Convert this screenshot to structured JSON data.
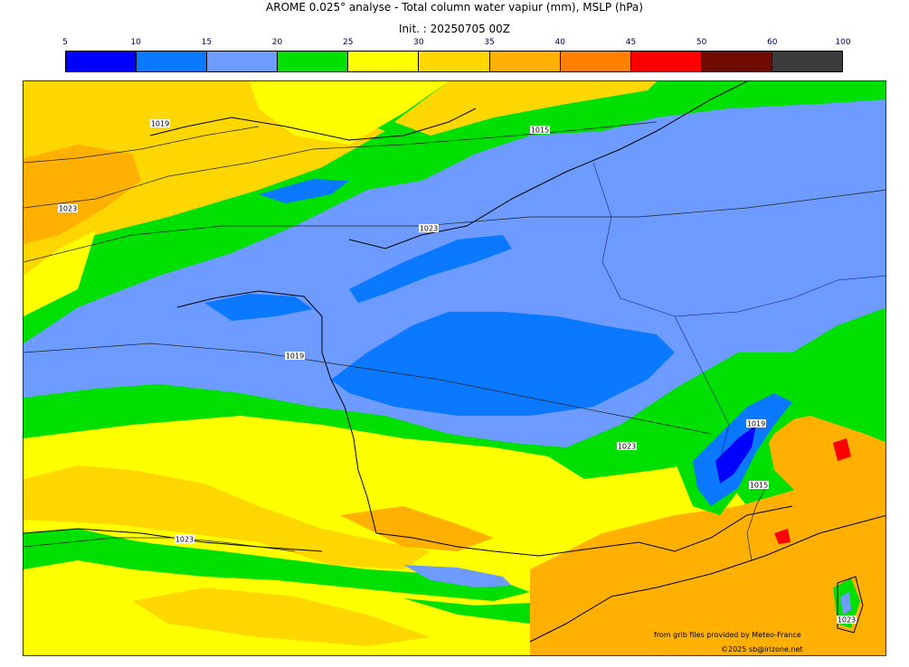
{
  "title": "AROME 0.025° analyse - Total column water vapiur (mm), MSLP (hPa)",
  "init": "Init. : 20250705 00Z",
  "scale": {
    "labels": [
      "5",
      "10",
      "15",
      "20",
      "25",
      "30",
      "35",
      "40",
      "45",
      "50",
      "60",
      "100"
    ],
    "colors": [
      "#0000ff",
      "#0a78ff",
      "#6e9bff",
      "#00e000",
      "#ffff00",
      "#ffd700",
      "#ffb000",
      "#ff8000",
      "#ff0000",
      "#6e0a00",
      "#3c3c3c"
    ]
  },
  "isobars": [
    "1019",
    "1023",
    "1015",
    "1023",
    "1023",
    "1023",
    "1019",
    "1015",
    "1023",
    "1019"
  ],
  "credits": {
    "source": "from grib files provided by Meteo-France",
    "copyright": "©2025 sb@irizone.net"
  }
}
